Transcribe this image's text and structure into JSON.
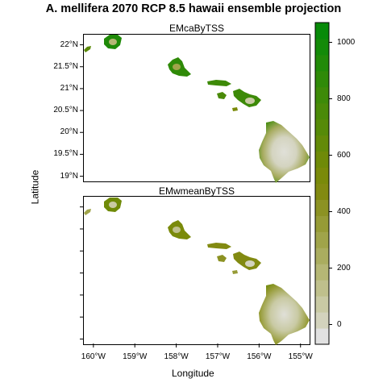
{
  "title": "A. mellifera 2070 RCP 8.5 hawaii ensemble projection",
  "xlabel": "Longitude",
  "ylabel": "Latitude",
  "panels": [
    {
      "name": "EMcaByTSS",
      "show_y_labels": true
    },
    {
      "name": "EMwmeanByTSS",
      "show_y_labels": false
    }
  ],
  "lon_ticks": [
    "160°W",
    "159°W",
    "158°W",
    "157°W",
    "156°W",
    "155°W"
  ],
  "lat_ticks": [
    "22°N",
    "21.5°N",
    "21°N",
    "20.5°N",
    "20°N",
    "19.5°N",
    "19°N"
  ],
  "chart_data": {
    "type": "heatmap",
    "xlim": [
      -160.25,
      -154.8
    ],
    "ylim": [
      18.9,
      22.25
    ],
    "x_ticks": [
      -160,
      -159,
      -158,
      -157,
      -156,
      -155
    ],
    "y_ticks": [
      22,
      21.5,
      21,
      20.5,
      20,
      19.5,
      19
    ],
    "colorbar": {
      "range": [
        -70,
        1070
      ],
      "ticks": [
        0,
        200,
        400,
        600,
        800,
        1000
      ],
      "colors_low_to_high": [
        "#e1e1e1",
        "#d3d3bd",
        "#c9caa4",
        "#bfc08c",
        "#b5b775",
        "#aaad5f",
        "#a0a44a",
        "#969b36",
        "#8c9223",
        "#828a11",
        "#7a8a0a",
        "#6f8a08",
        "#638a08",
        "#568a08",
        "#4a8a08",
        "#3d8a08",
        "#2f8a08",
        "#218a08",
        "#138a08",
        "#078a08"
      ]
    }
  }
}
